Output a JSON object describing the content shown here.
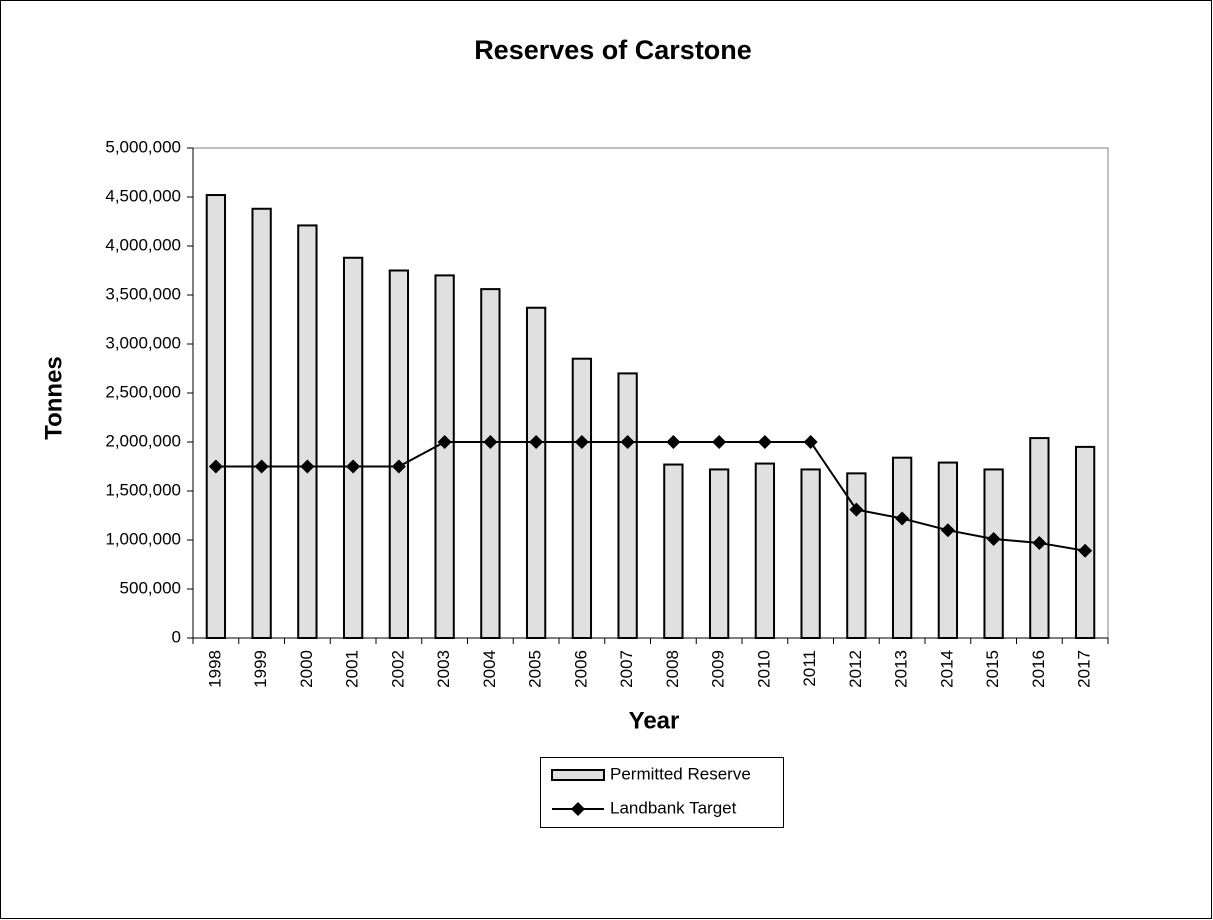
{
  "chart_data": {
    "type": "bar",
    "title": "Reserves of Carstone",
    "x_label": "Year",
    "y_label": "Tonnes",
    "categories": [
      "1998",
      "1999",
      "2000",
      "2001",
      "2002",
      "2003",
      "2004",
      "2005",
      "2006",
      "2007",
      "2008",
      "2009",
      "2010",
      "2011",
      "2012",
      "2013",
      "2014",
      "2015",
      "2016",
      "2017"
    ],
    "series": [
      {
        "name": "Permitted Reserve",
        "type": "bar",
        "color": "#e0e0e0",
        "values": [
          4520000,
          4380000,
          4210000,
          3880000,
          3750000,
          3700000,
          3560000,
          3370000,
          2850000,
          2700000,
          1770000,
          1720000,
          1780000,
          1720000,
          1680000,
          1840000,
          1790000,
          1720000,
          2040000,
          1950000
        ]
      },
      {
        "name": "Landbank Target",
        "type": "line",
        "color": "#000000",
        "values": [
          1750000,
          1750000,
          1750000,
          1750000,
          1750000,
          2000000,
          2000000,
          2000000,
          2000000,
          2000000,
          2000000,
          2000000,
          2000000,
          2000000,
          1310000,
          1220000,
          1100000,
          1010000,
          970000,
          890000
        ]
      }
    ],
    "ylim": [
      0,
      5000000
    ],
    "yticks": [
      0,
      {
        "value": 500000,
        "label": "500,000"
      },
      {
        "value": 1000000,
        "label": "1,000,000"
      },
      {
        "value": 1500000,
        "label": "1,500,000"
      },
      {
        "value": 2000000,
        "label": "2,000,000"
      },
      {
        "value": 2500000,
        "label": "2,500,000"
      },
      {
        "value": 3000000,
        "label": "3,000,000"
      },
      {
        "value": 3500000,
        "label": "3,500,000"
      },
      {
        "value": 4000000,
        "label": "4,000,000"
      },
      {
        "value": 4500000,
        "label": "4,500,000"
      },
      {
        "value": 5000000,
        "label": "5,000,000"
      }
    ],
    "grid": false,
    "legend": "bottom"
  }
}
